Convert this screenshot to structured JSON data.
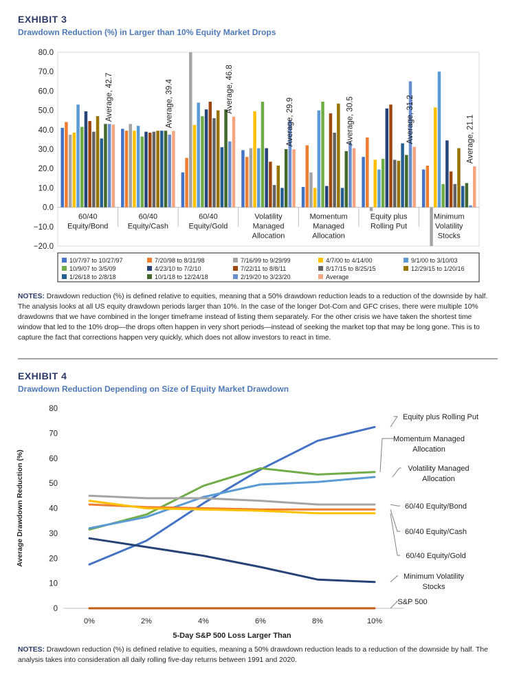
{
  "exhibit3": {
    "label": "EXHIBIT 3",
    "title": "Drawdown Reduction (%) in Larger than 10% Equity Market Drops",
    "notes_label": "NOTES:",
    "notes_text": " Drawdown reduction (%) is defined relative to equities, meaning that a 50% drawdown reduction leads to a reduction of the downside by half. The analysis looks at all US equity drawdown periods larger than 10%. In the case of the longer Dot-Com and GFC crises, there were multiple 10% drawdowns that we have combined in the longer timeframe instead of listing them separately. For the other crisis we have taken the shortest time window that led to the 10% drop—the drops often happen in very short periods—instead of seeking the market top that may be long gone. This is to capture the fact that corrections happen very quickly, which does not allow investors to react in time."
  },
  "exhibit4": {
    "label": "EXHIBIT 4",
    "title": "Drawdown Reduction Depending on Size of Equity Market Drawdown",
    "notes_label": "NOTES:",
    "notes_text": " Drawdown reduction (%) is defined relative to equities, meaning a 50% drawdown reduction leads to a reduction of the downside by half. The analysis takes into consideration all daily rolling five-day returns between 1991 and 2020."
  },
  "chart_data": [
    {
      "type": "bar",
      "title": "Drawdown Reduction (%) in Larger than 10% Equity Market Drops",
      "ylim": [
        -20,
        80
      ],
      "yticks": [
        "80.0",
        "70.0",
        "60.0",
        "50.0",
        "40.0",
        "30.0",
        "20.0",
        "10.0",
        "0.0",
        "−10.0",
        "−20.0"
      ],
      "grid": false,
      "legend_position": "bottom",
      "categories": [
        [
          "60/40",
          "Equity/Bond"
        ],
        [
          "60/40",
          "Equity/Cash"
        ],
        [
          "60/40",
          "Equity/Gold"
        ],
        [
          "Volatility",
          "Managed",
          "Allocation"
        ],
        [
          "Momentum",
          "Managed",
          "Allocation"
        ],
        [
          "Equity plus",
          "Rolling Put"
        ],
        [
          "Minimum",
          "Volatility",
          "Stocks"
        ]
      ],
      "average_labels": [
        "Average, 42.7",
        "Average, 39.4",
        "Average, 46.8",
        "Average, 29.9",
        "Average, 30.5",
        "Average, 31.2",
        "Average, 21.1"
      ],
      "series": [
        {
          "name": "10/7/97 to 10/27/97",
          "color": "#4472c4",
          "values": [
            41,
            40.5,
            18,
            29.5,
            10.5,
            26,
            19.5
          ]
        },
        {
          "name": "7/20/98 to 8/31/98",
          "color": "#ed7d31",
          "values": [
            44,
            39.5,
            25.5,
            26,
            32,
            36,
            21.5
          ]
        },
        {
          "name": "7/16/99 to 9/29/99",
          "color": "#a5a5a5",
          "values": [
            37.5,
            43,
            80,
            30.5,
            18,
            -2,
            -20
          ]
        },
        {
          "name": "4/7/00 to 4/14/00",
          "color": "#ffc000",
          "values": [
            38.5,
            39.5,
            42.5,
            49.5,
            10,
            24.5,
            51.5
          ]
        },
        {
          "name": "9/1/00 to 3/10/03",
          "color": "#5b9bd5",
          "values": [
            53,
            42,
            54,
            30.5,
            50,
            19.5,
            70
          ]
        },
        {
          "name": "10/9/07 to 3/5/09",
          "color": "#70ad47",
          "values": [
            41.5,
            36.5,
            47,
            54.5,
            54.5,
            25,
            12
          ]
        },
        {
          "name": "4/23/10 to 7/2/10",
          "color": "#264478",
          "values": [
            49.5,
            39,
            50.5,
            30.5,
            11,
            51,
            34.5
          ]
        },
        {
          "name": "7/22/11 to 8/8/11",
          "color": "#9e480e",
          "values": [
            44.5,
            38.5,
            54.5,
            23.5,
            48.5,
            53,
            18.5
          ]
        },
        {
          "name": "8/17/15 to 8/25/15",
          "color": "#636363",
          "values": [
            39,
            39,
            46,
            11.5,
            38.5,
            24.5,
            12
          ]
        },
        {
          "name": "12/29/15 to 1/20/16",
          "color": "#997300",
          "values": [
            47,
            39.5,
            50,
            21.5,
            53.5,
            24,
            30.5
          ]
        },
        {
          "name": "1/26/18 to 2/8/18",
          "color": "#255e91",
          "values": [
            35.5,
            39.5,
            31,
            10,
            10,
            33,
            11
          ]
        },
        {
          "name": "10/1/18 to 12/24/18",
          "color": "#43682b",
          "values": [
            43,
            39.5,
            50.5,
            30,
            29,
            27,
            12.5
          ]
        },
        {
          "name": "2/19/20 to 3/23/20",
          "color": "#698ed0",
          "values": [
            43,
            37.5,
            34,
            45,
            33.5,
            65,
            1
          ]
        },
        {
          "name": "Average",
          "color": "#f4a582",
          "values": [
            42.7,
            39.4,
            46.8,
            29.9,
            30.5,
            31.2,
            21.1
          ]
        }
      ]
    },
    {
      "type": "line",
      "title": "Drawdown Reduction Depending on Size of Equity Market Drawdown",
      "xlabel": "5-Day S&P 500 Loss Larger Than",
      "ylabel": "Average Drawdown Reduction (%)",
      "x": [
        "0%",
        "2%",
        "4%",
        "6%",
        "8%",
        "10%"
      ],
      "ylim": [
        0,
        80
      ],
      "yticks": [
        "80",
        "70",
        "60",
        "50",
        "40",
        "30",
        "20",
        "10",
        "0"
      ],
      "grid": false,
      "series": [
        {
          "name": "Equity plus Rolling Put",
          "label_lines": [
            "Equity plus Rolling Put"
          ],
          "color": "#4472c4",
          "values": [
            17.5,
            27,
            42,
            55.5,
            67,
            72.5
          ]
        },
        {
          "name": "Momentum Managed Allocation",
          "label_lines": [
            "Momentum Managed",
            "Allocation"
          ],
          "color": "#70ad47",
          "values": [
            31.5,
            37.5,
            49,
            56,
            53.5,
            54.5
          ]
        },
        {
          "name": "Volatility Managed Allocation",
          "label_lines": [
            "Volatility Managed",
            "Allocation"
          ],
          "color": "#5b9bd5",
          "values": [
            32,
            36.5,
            44.5,
            49.5,
            50.5,
            52.5
          ]
        },
        {
          "name": "60/40 Equity/Bond",
          "label_lines": [
            "60/40 Equity/Bond"
          ],
          "color": "#a5a5a5",
          "values": [
            45,
            44,
            44,
            43,
            41.5,
            41.5
          ]
        },
        {
          "name": "60/40 Equity/Cash",
          "label_lines": [
            "60/40 Equity/Cash"
          ],
          "color": "#ed7d31",
          "values": [
            41.5,
            40.5,
            40,
            39.5,
            39.5,
            39.5
          ]
        },
        {
          "name": "60/40 Equity/Gold",
          "label_lines": [
            "60/40 Equity/Gold"
          ],
          "color": "#ffc000",
          "values": [
            43,
            40,
            39.5,
            39,
            38,
            38
          ]
        },
        {
          "name": "Minimum Volatility Stocks",
          "label_lines": [
            "Minimum Volatility",
            "Stocks"
          ],
          "color": "#264478",
          "values": [
            28,
            24.5,
            21,
            16.5,
            11.5,
            10.5
          ]
        },
        {
          "name": "S&P 500",
          "label_lines": [
            "S&P 500"
          ],
          "color": "#c55a11",
          "values": [
            0,
            0,
            0,
            0,
            0,
            0
          ]
        }
      ]
    }
  ]
}
